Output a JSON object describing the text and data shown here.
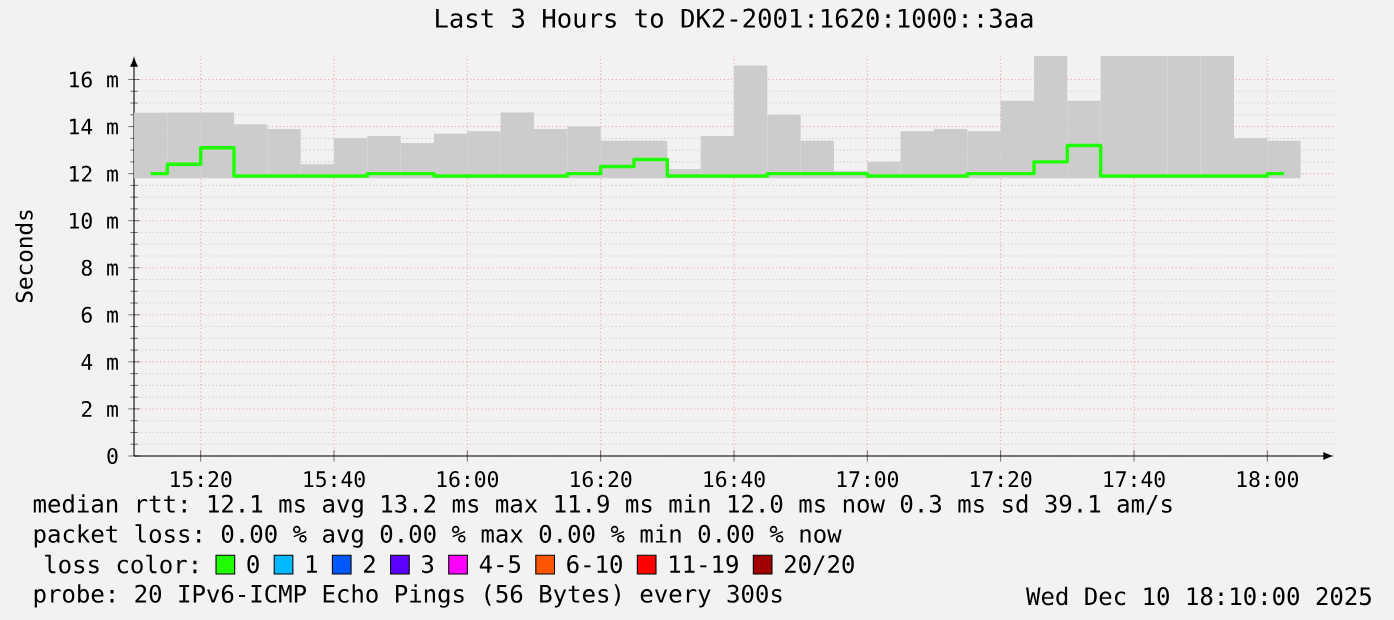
{
  "chart_data": {
    "type": "step",
    "title": "Last 3 Hours to DK2-2001:1620:1000::3aa",
    "ylabel": "Seconds",
    "x": [
      15.2083,
      15.2917,
      15.375,
      15.4583,
      15.5417,
      15.625,
      15.7083,
      15.7917,
      15.875,
      15.9583,
      16.0417,
      16.125,
      16.2083,
      16.2917,
      16.375,
      16.4583,
      16.5417,
      16.625,
      16.7083,
      16.7917,
      16.875,
      16.9583,
      17.0417,
      17.125,
      17.2083,
      17.2917,
      17.375,
      17.4583,
      17.5417,
      17.625,
      17.7083,
      17.7917,
      17.875,
      17.9583,
      18.0417
    ],
    "xlim": [
      15.1667,
      18.1667
    ],
    "xticks": [
      {
        "value": 15.3333,
        "label": "15:20"
      },
      {
        "value": 15.6667,
        "label": "15:40"
      },
      {
        "value": 16,
        "label": "16:00"
      },
      {
        "value": 16.3333,
        "label": "16:20"
      },
      {
        "value": 16.6667,
        "label": "16:40"
      },
      {
        "value": 17,
        "label": "17:00"
      },
      {
        "value": 17.3333,
        "label": "17:20"
      },
      {
        "value": 17.6667,
        "label": "17:40"
      },
      {
        "value": 18,
        "label": "18:00"
      }
    ],
    "ylim": [
      0,
      17
    ],
    "yticks": [
      0,
      {
        "value": 2,
        "label": "2 m"
      },
      {
        "value": 4,
        "label": "4 m"
      },
      {
        "value": 6,
        "label": "6 m"
      },
      {
        "value": 8,
        "label": "8 m"
      },
      {
        "value": 10,
        "label": "10 m"
      },
      {
        "value": 12,
        "label": "12 m"
      },
      {
        "value": 14,
        "label": "14 m"
      },
      {
        "value": 16,
        "label": "16 m"
      }
    ],
    "grid": true,
    "legend": "bottom",
    "legend_title": "loss color:",
    "series": [
      {
        "type": "bar",
        "color": "#cccccc",
        "base": [
          11.8,
          11.8,
          11.8,
          11.8,
          11.8,
          11.8,
          11.8,
          11.8,
          11.8,
          11.8,
          11.8,
          11.8,
          11.8,
          11.8,
          11.8,
          11.8,
          11.8,
          11.8,
          11.8,
          11.8,
          11.8,
          11.8,
          11.8,
          11.8,
          11.8,
          11.8,
          11.8,
          11.8,
          11.8,
          11.8,
          11.8,
          11.8,
          11.8,
          11.8,
          11.8
        ],
        "values": [
          2.8,
          2.8,
          2.8,
          2.3,
          2.1,
          0.6,
          1.7,
          1.8,
          1.5,
          1.9,
          2.0,
          2.8,
          2.1,
          2.2,
          1.6,
          1.6,
          0.4,
          1.8,
          4.8,
          2.7,
          1.6,
          0.3,
          0.7,
          2.0,
          2.1,
          2.0,
          3.3,
          5.2,
          3.3,
          5.2,
          5.2,
          5.2,
          5.2,
          1.7,
          1.6
        ]
      },
      {
        "name": "0",
        "color": "#20ff00",
        "values": [
          12.0,
          12.4,
          13.1,
          11.9,
          11.9,
          11.9,
          11.9,
          12.0,
          12.0,
          11.9,
          11.9,
          11.9,
          11.9,
          12.0,
          12.3,
          12.6,
          11.9,
          11.9,
          11.9,
          12.0,
          12.0,
          12.0,
          11.9,
          11.9,
          11.9,
          12.0,
          12.0,
          12.5,
          13.2,
          11.9,
          11.9,
          11.9,
          11.9,
          11.9,
          12.0
        ]
      },
      {
        "name": "1",
        "color": "#00b8ff",
        "values": [
          null,
          null,
          null,
          null,
          null,
          null,
          null,
          null,
          null,
          null,
          null,
          null,
          null,
          null,
          null,
          null,
          null,
          null,
          null,
          null,
          null,
          null,
          null,
          null,
          null,
          null,
          null,
          null,
          null,
          null,
          null,
          null,
          null,
          null,
          null
        ]
      },
      {
        "name": "2",
        "color": "#0059ff",
        "values": [
          null,
          null,
          null,
          null,
          null,
          null,
          null,
          null,
          null,
          null,
          null,
          null,
          null,
          null,
          null,
          null,
          null,
          null,
          null,
          null,
          null,
          null,
          null,
          null,
          null,
          null,
          null,
          null,
          null,
          null,
          null,
          null,
          null,
          null,
          null
        ]
      },
      {
        "name": "3",
        "color": "#5e00ff",
        "values": [
          null,
          null,
          null,
          null,
          null,
          null,
          null,
          null,
          null,
          null,
          null,
          null,
          null,
          null,
          null,
          null,
          null,
          null,
          null,
          null,
          null,
          null,
          null,
          null,
          null,
          null,
          null,
          null,
          null,
          null,
          null,
          null,
          null,
          null,
          null
        ]
      },
      {
        "name": "4-5",
        "color": "#ff00ff",
        "values": [
          null,
          null,
          null,
          null,
          null,
          null,
          null,
          null,
          null,
          null,
          null,
          null,
          null,
          null,
          null,
          null,
          null,
          null,
          null,
          null,
          null,
          null,
          null,
          null,
          null,
          null,
          null,
          null,
          null,
          null,
          null,
          null,
          null,
          null,
          null
        ]
      },
      {
        "name": "6-10",
        "color": "#ff5500",
        "values": [
          null,
          null,
          null,
          null,
          null,
          null,
          null,
          null,
          null,
          null,
          null,
          null,
          null,
          null,
          null,
          null,
          null,
          null,
          null,
          null,
          null,
          null,
          null,
          null,
          null,
          null,
          null,
          null,
          null,
          null,
          null,
          null,
          null,
          null,
          null
        ]
      },
      {
        "name": "11-19",
        "color": "#ff0000",
        "values": [
          null,
          null,
          null,
          null,
          null,
          null,
          null,
          null,
          null,
          null,
          null,
          null,
          null,
          null,
          null,
          null,
          null,
          null,
          null,
          null,
          null,
          null,
          null,
          null,
          null,
          null,
          null,
          null,
          null,
          null,
          null,
          null,
          null,
          null,
          null
        ]
      },
      {
        "name": "20/20",
        "color": "#a10000",
        "values": [
          null,
          null,
          null,
          null,
          null,
          null,
          null,
          null,
          null,
          null,
          null,
          null,
          null,
          null,
          null,
          null,
          null,
          null,
          null,
          null,
          null,
          null,
          null,
          null,
          null,
          null,
          null,
          null,
          null,
          null,
          null,
          null,
          null,
          null,
          null
        ]
      }
    ],
    "annotations": [
      "median rtt: 12.1 ms avg 13.2 ms max 11.9 ms min 12.0 ms now 0.3 ms sd 39.1 am/s",
      "packet loss: 0.00 % avg 0.00 % max 0.00 % min 0.00 % now",
      "probe: 20 IPv6-ICMP Echo Pings (56 Bytes) every 300s",
      "Wed Dec 10 18:10:00 2025"
    ]
  }
}
